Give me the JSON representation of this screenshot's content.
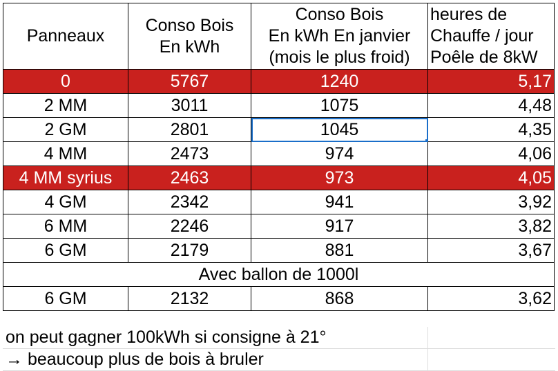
{
  "table": {
    "header": [
      [
        "Panneaux"
      ],
      [
        "Conso Bois",
        "En kWh"
      ],
      [
        "Conso Bois",
        "En kWh En janvier",
        "(mois le plus froid)"
      ],
      [
        "heures de",
        "Chauffe / jour",
        "Poêle de 8kW"
      ]
    ],
    "rows": [
      [
        "0",
        "5767",
        "1240",
        "5,17"
      ],
      [
        "2 MM",
        "3011",
        "1075",
        "4,48"
      ],
      [
        "2 GM",
        "2801",
        "1045",
        "4,35"
      ],
      [
        "4 MM",
        "2473",
        "974",
        "4,06"
      ],
      [
        "4 MM syrius",
        "2463",
        "973",
        "4,05"
      ],
      [
        "4 GM",
        "2342",
        "941",
        "3,92"
      ],
      [
        "6 MM",
        "2246",
        "917",
        "3,82"
      ],
      [
        "6 GM",
        "2179",
        "881",
        "3,67"
      ]
    ],
    "section": "Avec ballon de 1000l",
    "rows_after": [
      [
        "6 GM",
        "2132",
        "868",
        "3,62"
      ]
    ]
  },
  "notes": [
    "on peut gagner 100kWh si consigne à 21°",
    "→ beaucoup plus de bois à bruler"
  ]
}
